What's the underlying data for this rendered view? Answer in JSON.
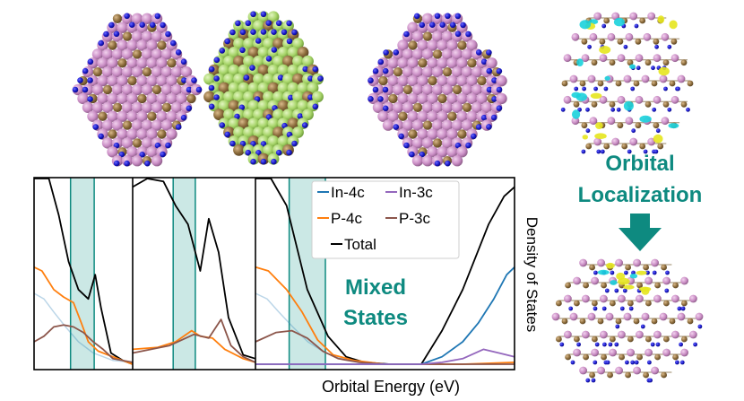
{
  "legend": {
    "in4c": "In-4c",
    "in3c": "In-3c",
    "p4c": "P-4c",
    "p3c": "P-3c",
    "total": "Total"
  },
  "labels": {
    "mixed_line1": "Mixed",
    "mixed_line2": "States",
    "orbital_line1": "Orbital",
    "orbital_line2": "Localization",
    "xlabel": "Orbital Energy (eV)",
    "ylabel": "Density of States"
  },
  "colors": {
    "in4c": "#1f77b4",
    "in3c": "#9467bd",
    "p4c": "#ff7f0e",
    "p3c": "#8c564b",
    "total": "#000000",
    "highlight": "#0e8a80",
    "highlight_fill": "#a9d9d4",
    "indium": "#c98cc4",
    "phosphorus": "#8a6a3a",
    "ligand": "#1818c8",
    "shell": "#a6d468",
    "orbital_yellow": "#e6e61e",
    "orbital_cyan": "#19d2dc"
  },
  "chart_data": {
    "type": "line",
    "xlabel": "Orbital Energy (eV)",
    "ylabel": "Density of States",
    "panels": [
      {
        "series": [
          {
            "name": "Total",
            "values": [
              [
                0,
                100
              ],
              [
                0.15,
                100
              ],
              [
                0.25,
                80
              ],
              [
                0.35,
                55
              ],
              [
                0.45,
                40
              ],
              [
                0.55,
                35
              ],
              [
                0.62,
                48
              ],
              [
                0.68,
                30
              ],
              [
                0.78,
                6
              ],
              [
                0.9,
                2
              ],
              [
                1,
                0
              ]
            ]
          },
          {
            "name": "P-4c",
            "values": [
              [
                0,
                52
              ],
              [
                0.08,
                50
              ],
              [
                0.2,
                40
              ],
              [
                0.3,
                36
              ],
              [
                0.4,
                33
              ],
              [
                0.48,
                22
              ],
              [
                0.55,
                12
              ],
              [
                0.65,
                7
              ],
              [
                0.75,
                5
              ],
              [
                0.9,
                2
              ],
              [
                1,
                0
              ]
            ]
          },
          {
            "name": "P-3c",
            "values": [
              [
                0,
                12
              ],
              [
                0.1,
                15
              ],
              [
                0.2,
                20
              ],
              [
                0.3,
                21
              ],
              [
                0.4,
                20
              ],
              [
                0.5,
                17
              ],
              [
                0.6,
                12
              ],
              [
                0.7,
                8
              ],
              [
                0.8,
                3
              ],
              [
                1,
                1
              ]
            ]
          }
        ],
        "highlight_band": [
          0.37,
          0.61
        ]
      },
      {
        "series": [
          {
            "name": "Total",
            "values": [
              [
                0,
                95
              ],
              [
                0.12,
                100
              ],
              [
                0.25,
                98
              ],
              [
                0.35,
                85
              ],
              [
                0.45,
                75
              ],
              [
                0.55,
                50
              ],
              [
                0.62,
                78
              ],
              [
                0.7,
                60
              ],
              [
                0.78,
                25
              ],
              [
                0.9,
                5
              ],
              [
                1,
                3
              ]
            ]
          },
          {
            "name": "P-4c",
            "values": [
              [
                0,
                8
              ],
              [
                0.2,
                9
              ],
              [
                0.35,
                12
              ],
              [
                0.48,
                18
              ],
              [
                0.55,
                15
              ],
              [
                0.65,
                14
              ],
              [
                0.75,
                8
              ],
              [
                0.9,
                3
              ],
              [
                1,
                1
              ]
            ]
          },
          {
            "name": "P-3c",
            "values": [
              [
                0,
                6
              ],
              [
                0.3,
                10
              ],
              [
                0.5,
                16
              ],
              [
                0.62,
                14
              ],
              [
                0.72,
                24
              ],
              [
                0.8,
                10
              ],
              [
                0.9,
                4
              ],
              [
                1,
                1
              ]
            ]
          }
        ],
        "highlight_band": [
          0.33,
          0.51
        ]
      },
      {
        "series": [
          {
            "name": "Total",
            "values": [
              [
                0,
                100
              ],
              [
                0.06,
                100
              ],
              [
                0.12,
                85
              ],
              [
                0.2,
                40
              ],
              [
                0.28,
                15
              ],
              [
                0.35,
                4
              ],
              [
                0.42,
                1
              ],
              [
                0.52,
                0
              ],
              [
                0.64,
                0
              ],
              [
                0.72,
                18
              ],
              [
                0.8,
                40
              ],
              [
                0.9,
                75
              ],
              [
                0.96,
                90
              ],
              [
                1,
                95
              ]
            ]
          },
          {
            "name": "P-4c",
            "values": [
              [
                0,
                52
              ],
              [
                0.05,
                50
              ],
              [
                0.12,
                40
              ],
              [
                0.18,
                28
              ],
              [
                0.24,
                13
              ],
              [
                0.3,
                5
              ],
              [
                0.38,
                2
              ],
              [
                0.5,
                0
              ],
              [
                0.8,
                0
              ],
              [
                1,
                1
              ]
            ]
          },
          {
            "name": "P-3c",
            "values": [
              [
                0,
                12
              ],
              [
                0.08,
                17
              ],
              [
                0.14,
                18
              ],
              [
                0.2,
                14
              ],
              [
                0.26,
                7
              ],
              [
                0.32,
                3
              ],
              [
                0.4,
                1
              ],
              [
                0.5,
                0
              ],
              [
                1,
                0
              ]
            ]
          },
          {
            "name": "In-4c",
            "values": [
              [
                0,
                0
              ],
              [
                0.64,
                0
              ],
              [
                0.72,
                4
              ],
              [
                0.8,
                12
              ],
              [
                0.86,
                22
              ],
              [
                0.92,
                35
              ],
              [
                0.97,
                48
              ],
              [
                1,
                52
              ]
            ]
          },
          {
            "name": "In-3c",
            "values": [
              [
                0,
                0
              ],
              [
                0.64,
                0
              ],
              [
                0.72,
                1
              ],
              [
                0.8,
                3
              ],
              [
                0.88,
                8
              ],
              [
                0.94,
                6
              ],
              [
                1,
                4
              ]
            ]
          }
        ],
        "highlight_band": [
          0.13,
          0.27
        ]
      }
    ]
  }
}
